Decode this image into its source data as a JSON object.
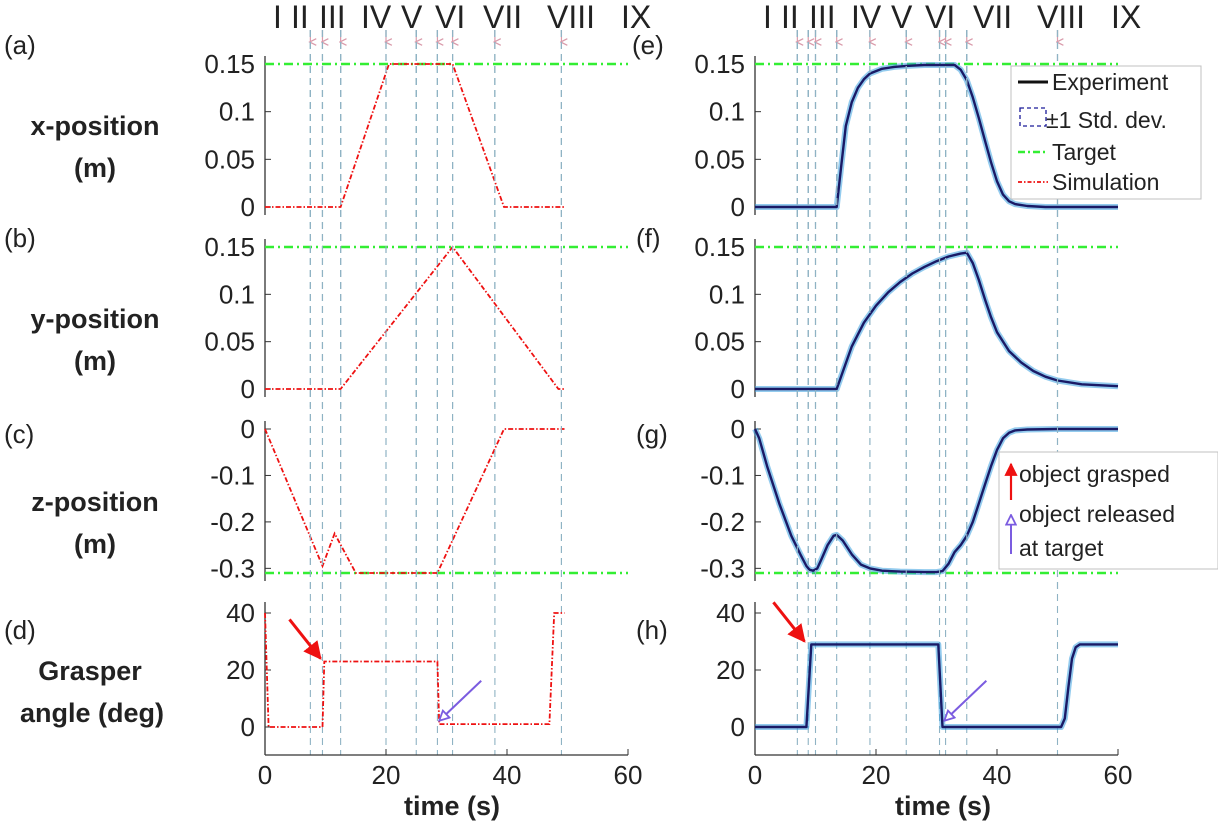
{
  "figure": {
    "phase_labels": [
      "I",
      "II",
      "III",
      "IV",
      "V",
      "VI",
      "VII",
      "VIII",
      "IX"
    ],
    "x_axis_label": "time (s)",
    "panel_letters": [
      "(a)",
      "(b)",
      "(c)",
      "(d)",
      "(e)",
      "(f)",
      "(g)",
      "(h)"
    ],
    "row_labels": [
      [
        "x-position",
        "(m)"
      ],
      [
        "y-position",
        "(m)"
      ],
      [
        "z-position",
        "(m)"
      ],
      [
        "Grasper",
        "angle (deg)"
      ]
    ],
    "legend": {
      "experiment": "Experiment",
      "std": "±1 Std. dev.",
      "target": "Target",
      "simulation": "Simulation"
    },
    "annotations": {
      "grasped": "object grasped",
      "released_line1": "object released",
      "released_line2": "at target"
    }
  },
  "colors": {
    "experiment": "#1a1a66",
    "std_band": "#3aa0e0",
    "target": "#33ee33",
    "simulation": "#ee1111",
    "phase_line": "#8fb3c4",
    "phase_arrow": "#d99aaa",
    "grasp_arrow": "#ee1111",
    "release_arrow": "#7b5ce0"
  },
  "chart_data": {
    "type": "line",
    "x_ticks": [
      0,
      20,
      40,
      60
    ],
    "xlim": [
      0,
      60
    ],
    "panels": [
      {
        "id": "a",
        "ylim": [
          0,
          0.15
        ],
        "y_ticks": [
          "0",
          "0.05",
          "0.1",
          "0.15"
        ],
        "y_tick_values": [
          0,
          0.05,
          0.1,
          0.15
        ],
        "target": 0.15,
        "phase_times": [
          7.5,
          9.5,
          12.5,
          20,
          25,
          28.5,
          31,
          38,
          49
        ],
        "series": [
          {
            "name": "Simulation",
            "x": [
              0,
              12.5,
              20.5,
              31,
              39.5,
              49.5
            ],
            "y": [
              0,
              0,
              0.15,
              0.15,
              0,
              0
            ]
          }
        ]
      },
      {
        "id": "b",
        "ylim": [
          0,
          0.15
        ],
        "y_ticks": [
          "0",
          "0.05",
          "0.1",
          "0.15"
        ],
        "y_tick_values": [
          0,
          0.05,
          0.1,
          0.15
        ],
        "target": 0.15,
        "phase_times": [
          7.5,
          9.5,
          12.5,
          20,
          25,
          28.5,
          31,
          38,
          49
        ],
        "series": [
          {
            "name": "Simulation",
            "x": [
              0,
              12.5,
              31,
              48.5,
              49.5
            ],
            "y": [
              0,
              0,
              0.15,
              0,
              0
            ]
          }
        ]
      },
      {
        "id": "c",
        "ylim": [
          -0.31,
          0
        ],
        "y_ticks": [
          "0",
          "-0.1",
          "-0.2",
          "-0.3"
        ],
        "y_tick_values": [
          0,
          -0.1,
          -0.2,
          -0.3
        ],
        "target": -0.31,
        "phase_times": [
          7.5,
          9.5,
          12.5,
          20,
          25,
          28.5,
          31,
          38,
          49
        ],
        "series": [
          {
            "name": "Simulation",
            "x": [
              0,
              9.5,
              11.5,
              15,
              28.5,
              39.5,
              49.5
            ],
            "y": [
              0,
              -0.295,
              -0.225,
              -0.31,
              -0.31,
              0,
              0
            ]
          }
        ]
      },
      {
        "id": "d",
        "ylim": [
          -5,
          42
        ],
        "y_ticks": [
          "0",
          "20",
          "40"
        ],
        "y_tick_values": [
          0,
          20,
          40
        ],
        "phase_times": [
          7.5,
          9.5,
          12.5,
          20,
          25,
          28.5,
          31,
          38,
          49
        ],
        "series": [
          {
            "name": "Simulation",
            "x": [
              0,
              0.6,
              9.5,
              9.8,
              28.5,
              28.8,
              47,
              47.8,
              49.5
            ],
            "y": [
              40,
              0,
              0,
              23,
              23,
              1,
              1,
              40,
              40
            ]
          }
        ]
      },
      {
        "id": "e",
        "ylim": [
          0,
          0.15
        ],
        "y_ticks": [
          "0",
          "0.05",
          "0.1",
          "0.15"
        ],
        "y_tick_values": [
          0,
          0.05,
          0.1,
          0.15
        ],
        "target": 0.15,
        "phase_times": [
          7,
          8.8,
          10,
          13.5,
          19,
          25,
          30.5,
          31.5,
          35,
          50
        ],
        "series": [
          {
            "name": "Experiment",
            "x": [
              0,
              13.5,
              14.2,
              15,
              16,
              17,
              18,
              19,
              21,
              23,
              25,
              28,
              33,
              34,
              35,
              36,
              37,
              38,
              39,
              40,
              41,
              42,
              43,
              45,
              48,
              52,
              60
            ],
            "y": [
              0,
              0,
              0.04,
              0.085,
              0.11,
              0.125,
              0.134,
              0.14,
              0.145,
              0.147,
              0.148,
              0.149,
              0.149,
              0.144,
              0.133,
              0.115,
              0.093,
              0.07,
              0.047,
              0.027,
              0.013,
              0.006,
              0.003,
              0.001,
              0,
              0,
              0
            ]
          }
        ]
      },
      {
        "id": "f",
        "ylim": [
          0,
          0.15
        ],
        "y_ticks": [
          "0",
          "0.05",
          "0.1",
          "0.15"
        ],
        "y_tick_values": [
          0,
          0.05,
          0.1,
          0.15
        ],
        "target": 0.15,
        "phase_times": [
          7,
          8.8,
          10,
          13.5,
          19,
          25,
          30.5,
          31.5,
          35,
          50
        ],
        "series": [
          {
            "name": "Experiment",
            "x": [
              0,
              13.5,
              14.5,
              16,
              18,
              20,
              22,
              24,
              26,
              28,
              30,
              32,
              34,
              35,
              36,
              37,
              38,
              39,
              40,
              42,
              44,
              46,
              48,
              50,
              54,
              60
            ],
            "y": [
              0,
              0,
              0.018,
              0.045,
              0.07,
              0.088,
              0.102,
              0.113,
              0.122,
              0.129,
              0.135,
              0.14,
              0.143,
              0.144,
              0.133,
              0.115,
              0.095,
              0.076,
              0.06,
              0.04,
              0.028,
              0.019,
              0.013,
              0.009,
              0.005,
              0.003
            ]
          }
        ]
      },
      {
        "id": "g",
        "ylim": [
          -0.31,
          0
        ],
        "y_ticks": [
          "0",
          "-0.1",
          "-0.2",
          "-0.3"
        ],
        "y_tick_values": [
          0,
          -0.1,
          -0.2,
          -0.3
        ],
        "target": -0.31,
        "phase_times": [
          7,
          8.8,
          10,
          13.5,
          19,
          25,
          30.5,
          31.5,
          35,
          50
        ],
        "series": [
          {
            "name": "Experiment",
            "x": [
              0,
              0.7,
              2,
              4,
              6,
              7.5,
              8.5,
              9,
              9.6,
              10.3,
              11,
              12,
              13,
              13.5,
              14.5,
              16,
              17.5,
              19,
              21,
              24,
              28,
              30,
              31,
              32,
              33,
              34,
              35,
              36,
              37,
              38,
              39,
              40,
              41,
              42,
              43,
              45,
              50,
              60
            ],
            "y": [
              0,
              -0.02,
              -0.08,
              -0.16,
              -0.23,
              -0.27,
              -0.295,
              -0.303,
              -0.305,
              -0.3,
              -0.28,
              -0.25,
              -0.23,
              -0.228,
              -0.24,
              -0.27,
              -0.292,
              -0.3,
              -0.305,
              -0.307,
              -0.308,
              -0.308,
              -0.306,
              -0.29,
              -0.265,
              -0.25,
              -0.23,
              -0.2,
              -0.16,
              -0.12,
              -0.08,
              -0.045,
              -0.02,
              -0.008,
              -0.003,
              -0.001,
              0,
              0
            ]
          }
        ]
      },
      {
        "id": "h",
        "ylim": [
          -5,
          42
        ],
        "y_ticks": [
          "0",
          "20",
          "40"
        ],
        "y_tick_values": [
          0,
          20,
          40
        ],
        "phase_times": [
          7,
          8.8,
          10,
          13.5,
          19,
          25,
          30.5,
          31.5,
          35,
          50
        ],
        "series": [
          {
            "name": "Experiment",
            "x": [
              0,
              8.5,
              9.3,
              30.3,
              31,
              50.6,
              51.2,
              51.8,
              52.4,
              53,
              53.7,
              60
            ],
            "y": [
              0,
              0,
              29,
              29,
              0,
              0,
              3,
              14,
              24,
              28,
              29,
              29
            ]
          }
        ]
      }
    ],
    "grasp_arrows": [
      {
        "panel": "d",
        "tip": [
          9.5,
          23
        ]
      },
      {
        "panel": "h",
        "tip": [
          8.5,
          29
        ]
      }
    ],
    "release_arrows": [
      {
        "panel": "d",
        "tip": [
          28.3,
          1.5
        ]
      },
      {
        "panel": "h",
        "tip": [
          30.8,
          1.5
        ]
      }
    ]
  }
}
